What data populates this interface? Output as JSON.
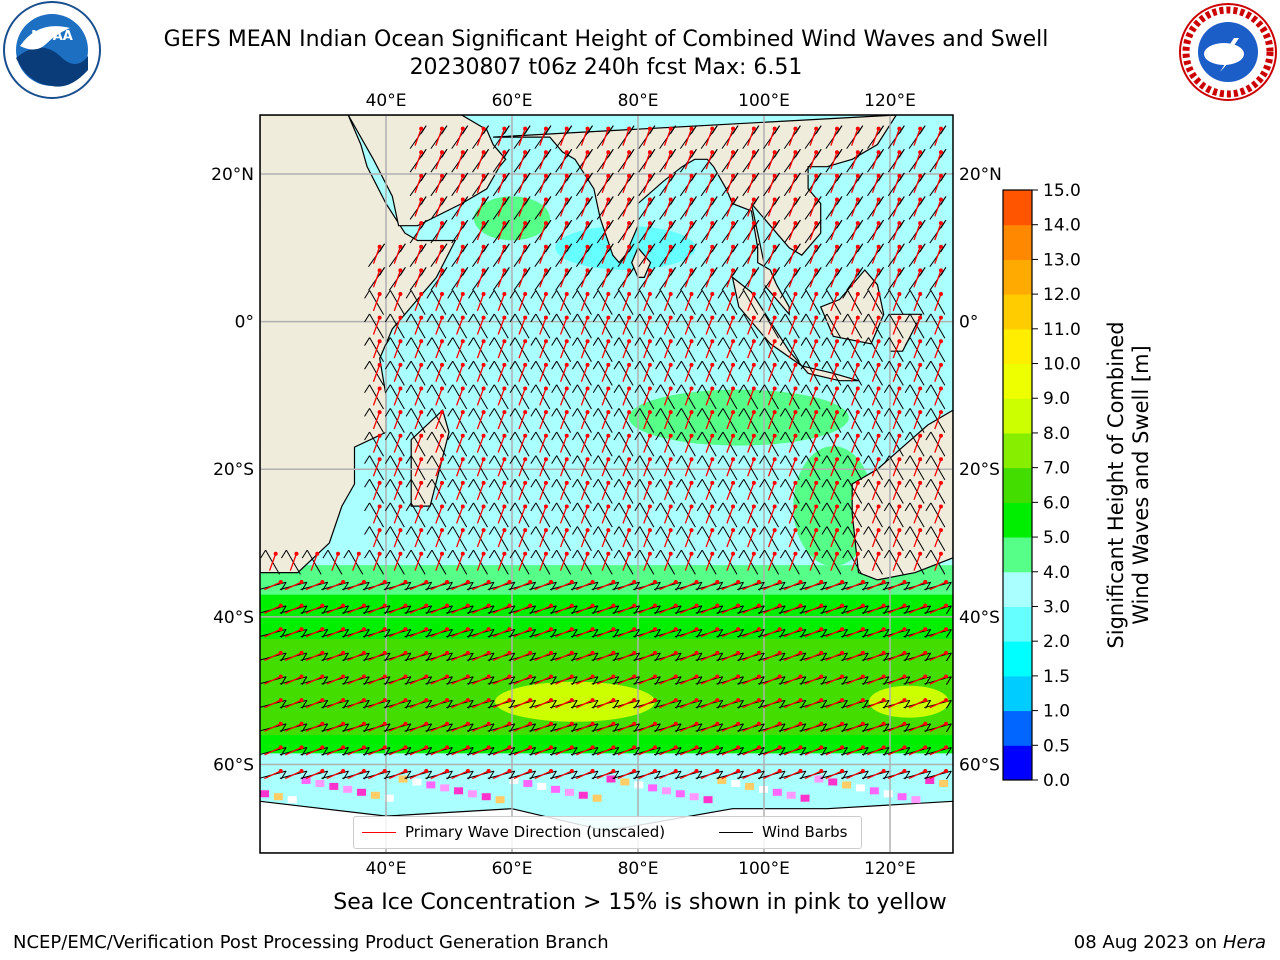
{
  "header": {
    "title_line1": "GEFS MEAN Indian Ocean Significant Height of Combined Wind Waves and Swell",
    "title_line2": "20230807 t06z 240h fcst   Max: 6.51"
  },
  "logos": {
    "left": "noaa-logo",
    "right": "national-weather-service-logo",
    "left_text": "NATIONAL OCEANIC AND ATMOSPHERIC ADMINISTRATION · U.S. DEPARTMENT OF COMMERCE",
    "left_center": "NOAA",
    "right_text": "NATIONAL WEATHER SERVICE"
  },
  "map": {
    "region": "Indian Ocean",
    "lon_ticks_top": [
      "40°E",
      "60°E",
      "80°E",
      "100°E",
      "120°E"
    ],
    "lon_ticks_bottom": [
      "40°E",
      "60°E",
      "80°E",
      "100°E",
      "120°E"
    ],
    "lat_ticks_left": [
      "20°N",
      "0°",
      "20°S",
      "40°S",
      "60°S"
    ],
    "lat_ticks_right": [
      "20°N",
      "0°",
      "20°S",
      "40°S",
      "60°S"
    ],
    "lon_values": [
      40,
      60,
      80,
      100,
      120
    ],
    "lat_values": [
      20,
      0,
      -20,
      -40,
      -60
    ],
    "lon_range": [
      20,
      130
    ],
    "lat_range": [
      -72,
      28
    ],
    "grid": true,
    "land_color": "#efecdc",
    "primary_wave_color": "#ff0000",
    "wind_barb_color": "#000000"
  },
  "legend": {
    "entries": [
      {
        "label": "Primary Wave Direction (unscaled)",
        "color": "#ff0000"
      },
      {
        "label": "Wind Barbs",
        "color": "#000000"
      }
    ],
    "placement": "bottom-center"
  },
  "colorbar": {
    "label_line1": "Significant Height of Combined",
    "label_line2": "Wind Waves and Swell [m]",
    "ticks": [
      "0.0",
      "0.5",
      "1.0",
      "1.5",
      "2.0",
      "3.0",
      "4.0",
      "5.0",
      "6.0",
      "7.0",
      "8.0",
      "9.0",
      "10.0",
      "11.0",
      "12.0",
      "13.0",
      "14.0",
      "15.0"
    ],
    "colors": [
      "#0000ff",
      "#0066ff",
      "#00ccff",
      "#00ffff",
      "#66ffff",
      "#aaffff",
      "#55ff88",
      "#00ee00",
      "#44dd00",
      "#88ee00",
      "#ccff00",
      "#eeff00",
      "#ffee00",
      "#ffcc00",
      "#ffaa00",
      "#ff8800",
      "#ff5500",
      "#ff2200",
      "#ff0000"
    ]
  },
  "footer": {
    "sea_ice_note": "Sea Ice Concentration > 15% is shown in pink to yellow",
    "credit": "NCEP/EMC/Verification Post Processing Product Generation Branch",
    "date": "08 Aug 2023 on",
    "machine": "Hera"
  }
}
